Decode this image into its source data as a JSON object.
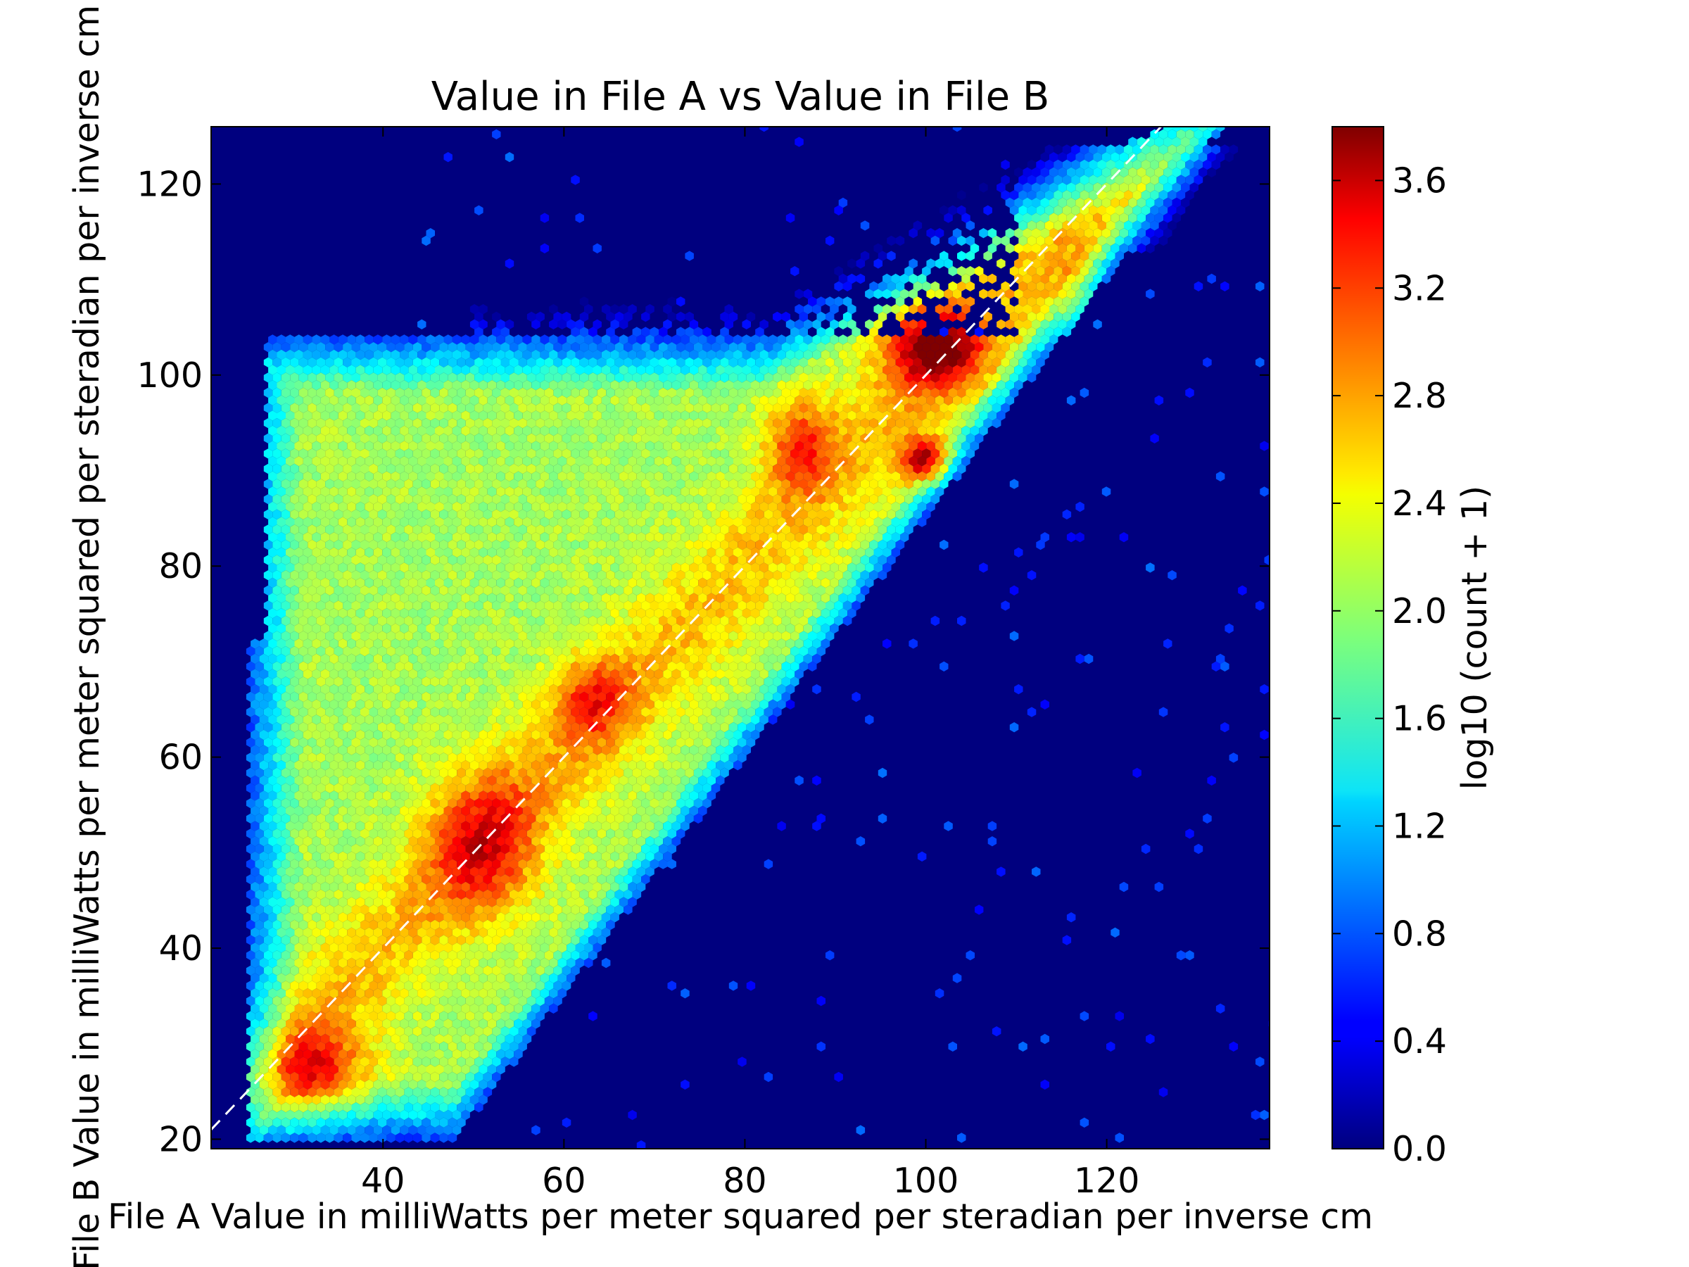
{
  "chart_data": {
    "type": "heatmap",
    "subtype": "hexbin",
    "title": "Value in File A vs Value in File B",
    "xlabel": "File A Value in milliWatts per meter squared per steradian per inverse cm",
    "ylabel": "File B Value in milliWatts per meter squared per steradian per inverse cm",
    "xlim": [
      21,
      138
    ],
    "ylim": [
      19,
      126
    ],
    "xticks": [
      40,
      60,
      80,
      100,
      120
    ],
    "yticks": [
      20,
      40,
      60,
      80,
      100,
      120
    ],
    "reference_line": {
      "style": "dashed",
      "color": "#ffffff",
      "x": [
        21,
        126
      ],
      "y": [
        21,
        126
      ]
    },
    "grid": false,
    "colorbar": {
      "label": "log10 (count + 1)",
      "min": 0.0,
      "max": 3.8,
      "colormap": "jet",
      "ticks": [
        "0.0",
        "0.4",
        "0.8",
        "1.2",
        "1.6",
        "2.0",
        "2.4",
        "2.8",
        "3.2",
        "3.6"
      ]
    },
    "background_color": "#00007f",
    "density_features": [
      {
        "label": "lower-left peak",
        "x": 32,
        "y": 27,
        "value": 3.1
      },
      {
        "label": "diagonal ridge",
        "x": 50,
        "y": 50,
        "value": 3.0
      },
      {
        "label": "diagonal ridge",
        "x": 63,
        "y": 66,
        "value": 2.9
      },
      {
        "label": "upper peak",
        "x": 101,
        "y": 103,
        "value": 3.6
      },
      {
        "label": "upper peak",
        "x": 100,
        "y": 91,
        "value": 3.6
      },
      {
        "label": "upper ridge",
        "x": 86,
        "y": 92,
        "value": 3.1
      },
      {
        "label": "right-side streak",
        "x": 116,
        "y": 107,
        "value": 2.7
      }
    ]
  }
}
